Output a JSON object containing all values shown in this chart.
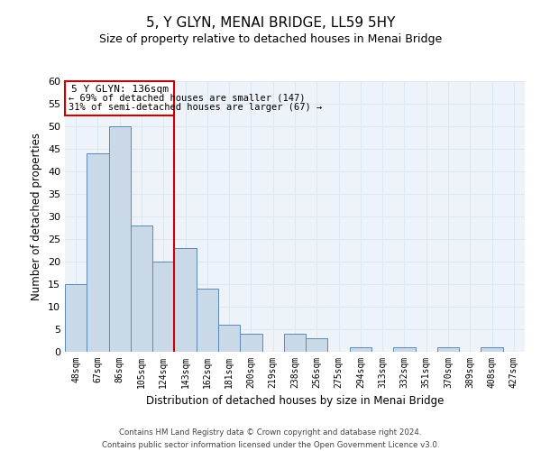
{
  "title": "5, Y GLYN, MENAI BRIDGE, LL59 5HY",
  "subtitle": "Size of property relative to detached houses in Menai Bridge",
  "xlabel": "Distribution of detached houses by size in Menai Bridge",
  "ylabel": "Number of detached properties",
  "bar_labels": [
    "48sqm",
    "67sqm",
    "86sqm",
    "105sqm",
    "124sqm",
    "143sqm",
    "162sqm",
    "181sqm",
    "200sqm",
    "219sqm",
    "238sqm",
    "256sqm",
    "275sqm",
    "294sqm",
    "313sqm",
    "332sqm",
    "351sqm",
    "370sqm",
    "389sqm",
    "408sqm",
    "427sqm"
  ],
  "bar_values": [
    15,
    44,
    50,
    28,
    20,
    23,
    14,
    6,
    4,
    0,
    4,
    3,
    0,
    1,
    0,
    1,
    0,
    1,
    0,
    1,
    0
  ],
  "bar_color": "#c9d9e8",
  "bar_edge_color": "#5a8ab5",
  "ylim": [
    0,
    60
  ],
  "yticks": [
    0,
    5,
    10,
    15,
    20,
    25,
    30,
    35,
    40,
    45,
    50,
    55,
    60
  ],
  "property_line_label": "5 Y GLYN: 136sqm",
  "annotation_line1": "← 69% of detached houses are smaller (147)",
  "annotation_line2": "31% of semi-detached houses are larger (67) →",
  "annotation_box_color": "#cc0000",
  "footer_line1": "Contains HM Land Registry data © Crown copyright and database right 2024.",
  "footer_line2": "Contains public sector information licensed under the Open Government Licence v3.0.",
  "grid_color": "#dde8f0",
  "background_color": "#eef3f9"
}
